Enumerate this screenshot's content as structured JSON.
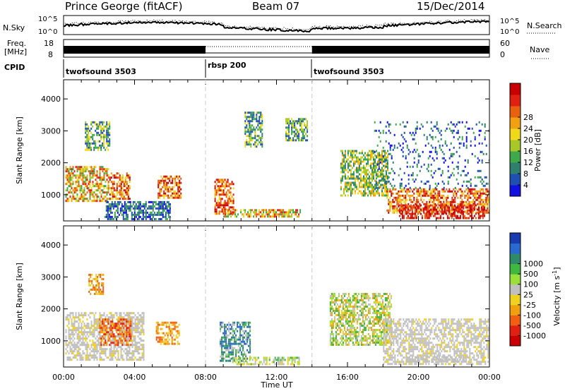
{
  "header": {
    "site": "Prince George (fitACF)",
    "beam": "Beam 07",
    "date": "15/Dec/2014"
  },
  "panels": {
    "noise": {
      "left_label": "N.Sky",
      "right_label": "N.Search",
      "left_ticks": [
        "10^5",
        "10^0"
      ],
      "right_ticks": [
        "10^5",
        "10^0"
      ]
    },
    "freq": {
      "left_label_1": "Freq.",
      "left_label_2": "[MHz]",
      "left_ticks": [
        "18",
        "8"
      ],
      "right_ticks": [
        "60",
        "0"
      ],
      "right_label": "Nave"
    },
    "cpid": {
      "label": "CPID",
      "segments": [
        {
          "name": "twofsound 3503",
          "start_h": 0,
          "end_h": 8
        },
        {
          "name": "rbsp 200",
          "start_h": 8,
          "end_h": 14
        },
        {
          "name": "twofsound 3503",
          "start_h": 14,
          "end_h": 24
        }
      ]
    }
  },
  "chart_data": [
    {
      "type": "heatmap",
      "title": "",
      "parameter": "Power",
      "ylabel": "Slant Range [km]",
      "xlim_hours": [
        0,
        24
      ],
      "ylim_km": [
        180,
        4600
      ],
      "yticks": [
        1000,
        2000,
        3000,
        4000
      ],
      "colorbar": {
        "label": "Power [dB]",
        "tick_labels": [
          "4",
          "8",
          "12",
          "16",
          "20",
          "24",
          "28"
        ],
        "colors": [
          "#1010e0",
          "#1f4fb0",
          "#2f7f6f",
          "#3fa84a",
          "#a8c82a",
          "#f0d81a",
          "#f0a010",
          "#e86010",
          "#e02010",
          "#c80000"
        ]
      },
      "echo_regions": [
        {
          "t_start": 0.1,
          "t_end": 2.5,
          "r_start": 800,
          "r_end": 1900,
          "level": "medium-high"
        },
        {
          "t_start": 1.2,
          "t_end": 2.6,
          "r_start": 2400,
          "r_end": 3300,
          "level": "low-medium"
        },
        {
          "t_start": 2.5,
          "t_end": 3.7,
          "r_start": 900,
          "r_end": 1700,
          "level": "high"
        },
        {
          "t_start": 2.3,
          "t_end": 6.0,
          "r_start": 250,
          "r_end": 800,
          "level": "low"
        },
        {
          "t_start": 5.3,
          "t_end": 6.6,
          "r_start": 900,
          "r_end": 1600,
          "level": "high"
        },
        {
          "t_start": 8.5,
          "t_end": 9.6,
          "r_start": 400,
          "r_end": 1500,
          "level": "high"
        },
        {
          "t_start": 9.0,
          "t_end": 13.3,
          "r_start": 300,
          "r_end": 550,
          "level": "medium-high"
        },
        {
          "t_start": 10.2,
          "t_end": 11.2,
          "r_start": 2500,
          "r_end": 3600,
          "level": "low-medium"
        },
        {
          "t_start": 12.5,
          "t_end": 13.7,
          "r_start": 2700,
          "r_end": 3400,
          "level": "low-medium"
        },
        {
          "t_start": 15.6,
          "t_end": 18.3,
          "r_start": 1000,
          "r_end": 2400,
          "level": "medium"
        },
        {
          "t_start": 18.2,
          "t_end": 24.0,
          "r_start": 450,
          "r_end": 1200,
          "level": "high"
        },
        {
          "t_start": 18.9,
          "t_end": 23.7,
          "r_start": 250,
          "r_end": 700,
          "level": "very-high"
        },
        {
          "t_start": 17.5,
          "t_end": 24.0,
          "r_start": 1200,
          "r_end": 3300,
          "level": "sparse-low"
        }
      ]
    },
    {
      "type": "heatmap",
      "title": "",
      "parameter": "Velocity",
      "ylabel": "Slant Range [km]",
      "xlabel": "Time UT",
      "xlim_hours": [
        0,
        24
      ],
      "ylim_km": [
        180,
        4600
      ],
      "yticks": [
        1000,
        2000,
        3000,
        4000
      ],
      "xtick_labels": [
        "00:00",
        "04:00",
        "08:00",
        "12:00",
        "16:00",
        "20:00",
        "00:00"
      ],
      "colorbar": {
        "label_main": "Velocity [m s",
        "label_sup": "-1",
        "label_end": "]",
        "tick_labels": [
          "1000",
          "500",
          "100",
          "25",
          "-25",
          "-100",
          "-500",
          "-1000"
        ],
        "colors": [
          "#1a3ab0",
          "#2a6ad0",
          "#2f8a6a",
          "#40b840",
          "#9adf3a",
          "#c0c0c0",
          "#f0d020",
          "#f0a010",
          "#f06010",
          "#e02010",
          "#c80000"
        ]
      },
      "echo_regions": [
        {
          "t_start": 0.1,
          "t_end": 4.5,
          "r_start": 400,
          "r_end": 1900,
          "level": "ground-scatter"
        },
        {
          "t_start": 2.0,
          "t_end": 3.8,
          "r_start": 900,
          "r_end": 1700,
          "level": "away-500"
        },
        {
          "t_start": 1.4,
          "t_end": 2.2,
          "r_start": 2500,
          "r_end": 3100,
          "level": "away-100"
        },
        {
          "t_start": 5.2,
          "t_end": 6.5,
          "r_start": 900,
          "r_end": 1600,
          "level": "away-100"
        },
        {
          "t_start": 8.8,
          "t_end": 10.5,
          "r_start": 400,
          "r_end": 1600,
          "level": "toward-100"
        },
        {
          "t_start": 9.5,
          "t_end": 13.3,
          "r_start": 280,
          "r_end": 500,
          "level": "toward-25"
        },
        {
          "t_start": 15.0,
          "t_end": 18.5,
          "r_start": 900,
          "r_end": 2500,
          "level": "mixed"
        },
        {
          "t_start": 18.0,
          "t_end": 24.0,
          "r_start": 300,
          "r_end": 1700,
          "level": "ground-scatter"
        },
        {
          "t_start": 19.3,
          "t_end": 22.8,
          "r_start": 380,
          "r_end": 520,
          "level": "near-zero"
        }
      ]
    }
  ]
}
